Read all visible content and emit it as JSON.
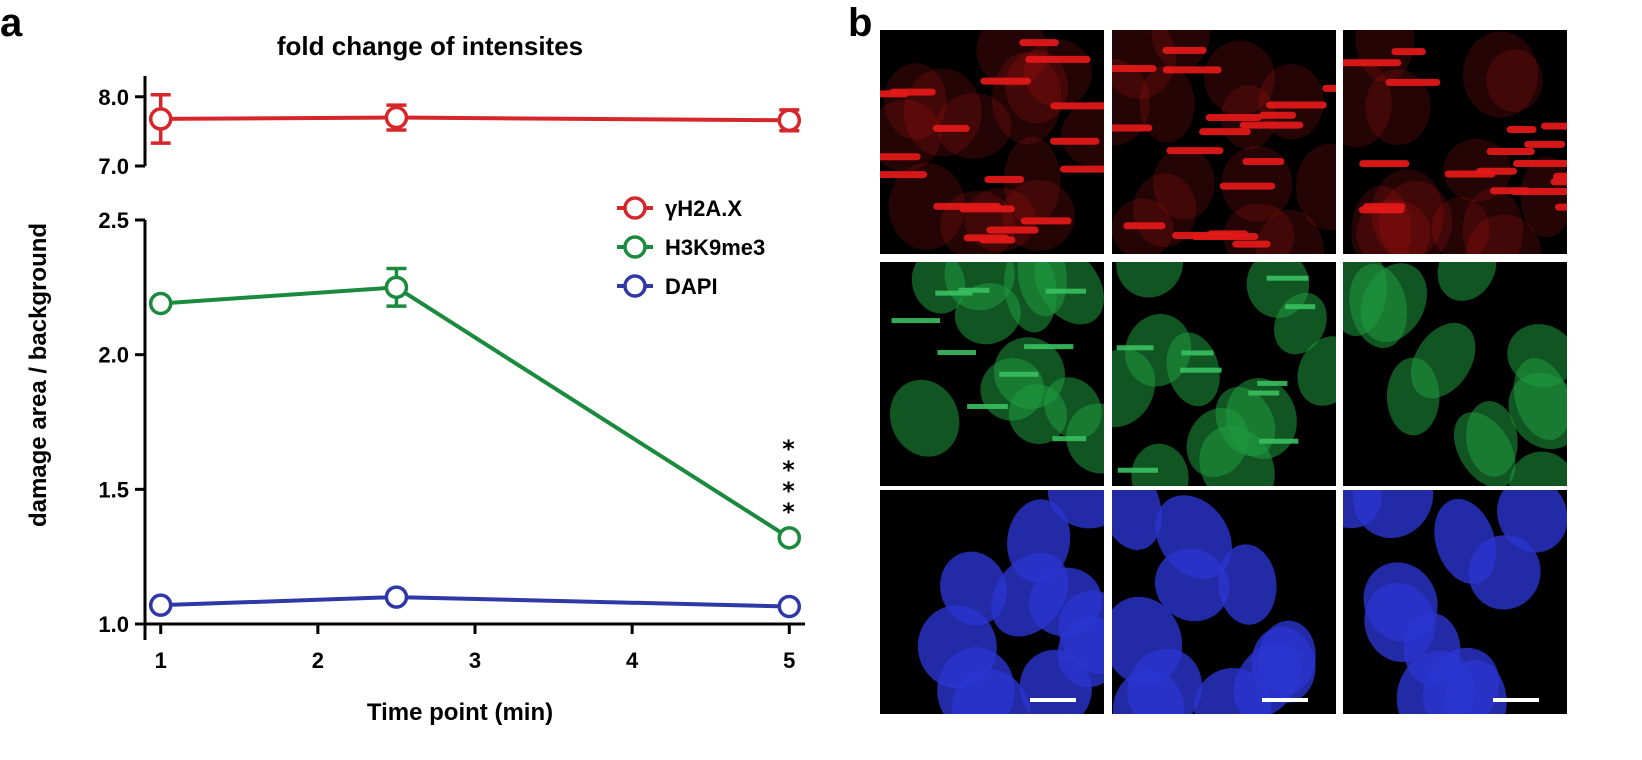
{
  "panels": {
    "a": "a",
    "b": "b"
  },
  "chart_data": {
    "type": "line",
    "title": "fold change of intensites",
    "xlabel": "Time point (min)",
    "ylabel": "damage area / background",
    "xlim": [
      0.9,
      5.1
    ],
    "xticks": [
      1,
      2,
      3,
      4,
      5
    ],
    "x": [
      1,
      2.5,
      5
    ],
    "y_axes": {
      "upper": {
        "ylim": [
          7.0,
          8.3
        ],
        "ticks": [
          7.0,
          8.0
        ],
        "tick_labels": [
          "7.0",
          "8.0"
        ]
      },
      "lower": {
        "ylim": [
          1.0,
          2.5
        ],
        "ticks": [
          1.0,
          1.5,
          2.0,
          2.5
        ],
        "tick_labels": [
          "1.0",
          "1.5",
          "2.0",
          "2.5"
        ]
      }
    },
    "series": [
      {
        "name": "γH2A.X",
        "color": "#d7262a",
        "axis": "upper",
        "values": [
          7.68,
          7.7,
          7.66
        ],
        "errors": [
          0.35,
          0.18,
          0.15
        ]
      },
      {
        "name": "H3K9me3",
        "color": "#1a8a3c",
        "axis": "lower",
        "values": [
          2.19,
          2.25,
          1.32
        ],
        "errors": [
          0.0,
          0.07,
          0.0
        ]
      },
      {
        "name": "DAPI",
        "color": "#3038a8",
        "axis": "lower",
        "values": [
          1.07,
          1.1,
          1.065
        ],
        "errors": [
          0.0,
          0.0,
          0.0
        ]
      }
    ],
    "annotations": [
      {
        "x": 5,
        "series": "H3K9me3",
        "text": "****"
      }
    ],
    "legend_position": "right-middle",
    "grid": false
  },
  "microscopy": {
    "rows": [
      {
        "channel": "γH2A.X",
        "color": "#e01818",
        "pattern": "stripes"
      },
      {
        "channel": "H3K9me3",
        "color": "#1f9a3e",
        "pattern": "speckled-nuclei"
      },
      {
        "channel": "DAPI",
        "color": "#2a35d0",
        "pattern": "nuclei"
      }
    ],
    "columns": 3,
    "background": "#000000",
    "scale_bar_color": "#ffffff"
  }
}
